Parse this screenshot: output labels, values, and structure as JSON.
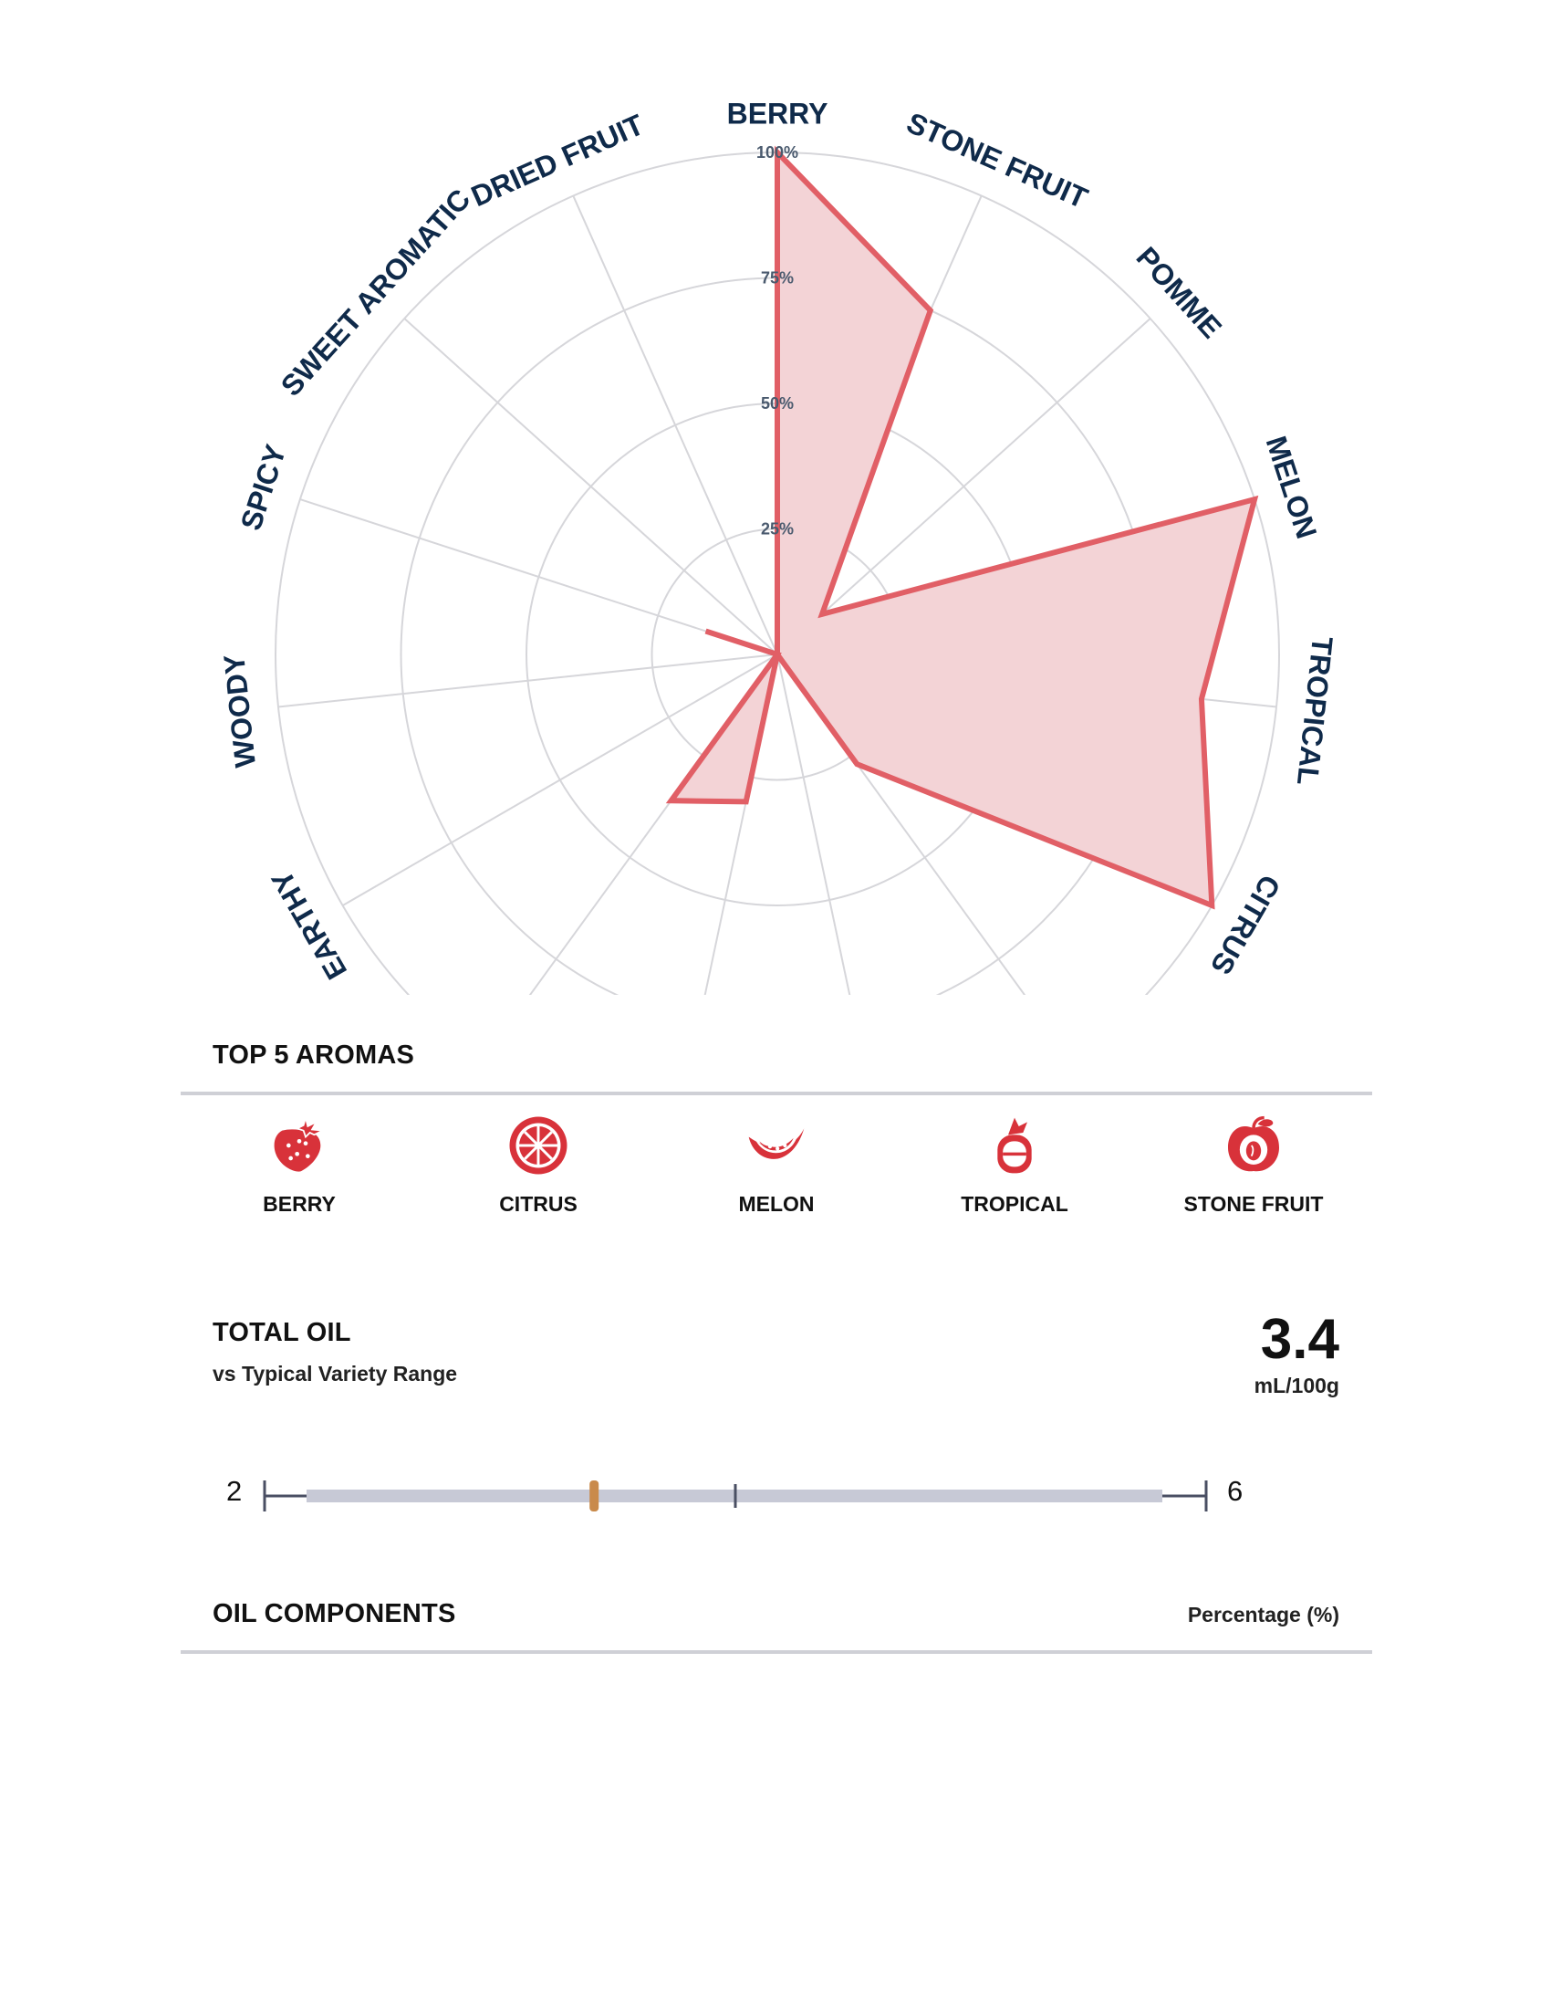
{
  "chart_data": {
    "type": "radar",
    "axes": [
      "BERRY",
      "STONE FRUIT",
      "POMME",
      "MELON",
      "TROPICAL",
      "CITRUS",
      "",
      "",
      "",
      "",
      "EARTHY",
      "WOODY",
      "SPICY",
      "SWEET AROMATIC",
      "DRIED FRUIT"
    ],
    "values": [
      100,
      75,
      12,
      100,
      85,
      100,
      27,
      0,
      30,
      36,
      0,
      0,
      15,
      0,
      0
    ],
    "ticks": [
      "25%",
      "50%",
      "75%",
      "100%"
    ],
    "range": [
      0,
      100
    ],
    "fill_color": "#f3d3d6",
    "line_color": "#e15f66",
    "grid_color": "#d6d6da"
  },
  "top5": {
    "title": "TOP 5 AROMAS",
    "items": [
      {
        "label": "BERRY",
        "icon": "strawberry-icon"
      },
      {
        "label": "CITRUS",
        "icon": "citrus-slice-icon"
      },
      {
        "label": "MELON",
        "icon": "melon-slice-icon"
      },
      {
        "label": "TROPICAL",
        "icon": "pineapple-icon"
      },
      {
        "label": "STONE FRUIT",
        "icon": "stone-fruit-icon"
      }
    ],
    "icon_color": "#d8323a"
  },
  "total_oil": {
    "title": "TOTAL OIL",
    "subtitle": "vs Typical Variety Range",
    "value": "3.4",
    "unit": "mL/100g",
    "range_min": "2",
    "range_max": "6",
    "value_numeric": 3.4,
    "marker_color": "#c98a4b"
  },
  "oil_components": {
    "title": "OIL COMPONENTS",
    "unit_label": "Percentage (%)"
  }
}
